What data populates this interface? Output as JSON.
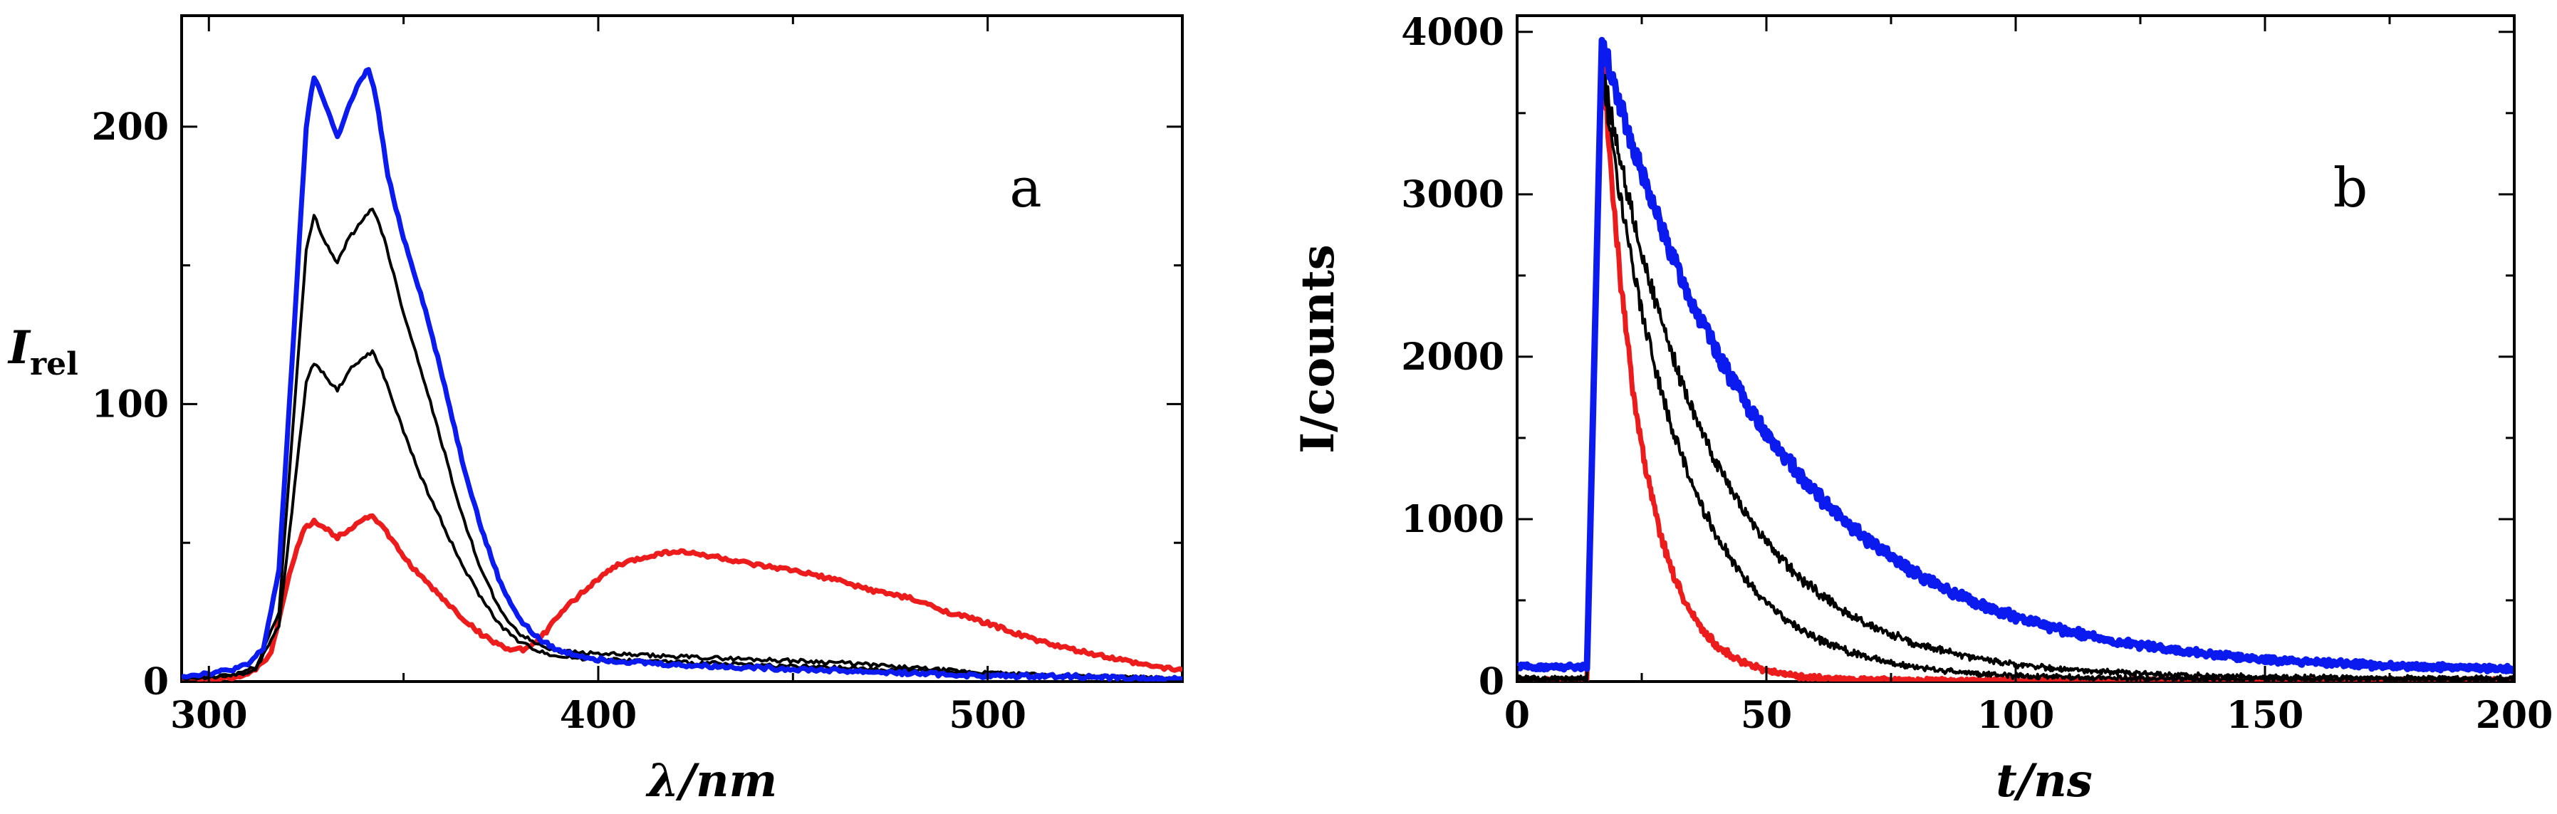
{
  "chart_data": [
    {
      "panel": "a",
      "type": "line",
      "xlabel": "λ/nm",
      "ylabel": "I",
      "ylabel_subscript": "rel",
      "xlim": [
        293,
        550
      ],
      "ylim": [
        0,
        240
      ],
      "xticks": [
        300,
        400,
        500
      ],
      "yticks": [
        0,
        100,
        200
      ],
      "grid": false,
      "series": [
        {
          "name": "blue (highest emission)",
          "color": "#0b1bf0",
          "x": [
            293,
            300,
            305,
            310,
            314,
            318,
            322,
            325,
            327,
            330,
            333,
            335,
            338,
            341,
            343,
            346,
            350,
            355,
            360,
            365,
            370,
            375,
            380,
            385,
            390,
            400,
            420,
            440,
            460,
            480,
            500,
            520,
            540,
            550
          ],
          "y": [
            2,
            3,
            4,
            6,
            12,
            40,
            130,
            200,
            218,
            208,
            196,
            204,
            214,
            221,
            210,
            182,
            160,
            137,
            110,
            80,
            55,
            35,
            22,
            15,
            11,
            8,
            6,
            5,
            4,
            3,
            2,
            2,
            1,
            1
          ]
        },
        {
          "name": "black (intermediate, upper)",
          "color": "#000000",
          "x": [
            293,
            305,
            312,
            318,
            322,
            325,
            327,
            330,
            333,
            336,
            339,
            342,
            345,
            350,
            355,
            360,
            365,
            370,
            375,
            380,
            385,
            390,
            400,
            420,
            440,
            460,
            480,
            500,
            520,
            550
          ],
          "y": [
            1,
            2,
            5,
            25,
            100,
            155,
            168,
            158,
            151,
            160,
            165,
            171,
            160,
            133,
            110,
            85,
            60,
            40,
            25,
            17,
            13,
            11,
            10,
            9,
            8,
            7,
            5,
            3,
            2,
            1
          ]
        },
        {
          "name": "black (intermediate, lower)",
          "color": "#000000",
          "x": [
            293,
            305,
            312,
            318,
            322,
            325,
            327,
            330,
            333,
            336,
            339,
            342,
            345,
            350,
            355,
            360,
            365,
            370,
            375,
            380,
            385,
            390,
            400,
            420,
            440,
            460,
            480,
            500,
            520,
            550
          ],
          "y": [
            1,
            2,
            4,
            20,
            70,
            108,
            115,
            110,
            105,
            112,
            116,
            119,
            110,
            90,
            72,
            57,
            42,
            30,
            20,
            14,
            11,
            9,
            8,
            7,
            6,
            5,
            4,
            3,
            2,
            1
          ]
        },
        {
          "name": "red (lowest emission, with excimer band)",
          "color": "#ed1c1c",
          "x": [
            293,
            300,
            310,
            316,
            320,
            324,
            327,
            330,
            333,
            336,
            339,
            342,
            345,
            350,
            355,
            360,
            365,
            370,
            375,
            378,
            382,
            386,
            390,
            395,
            400,
            405,
            410,
            415,
            420,
            425,
            430,
            440,
            450,
            460,
            470,
            480,
            490,
            500,
            510,
            520,
            530,
            540,
            550
          ],
          "y": [
            1,
            1,
            2,
            10,
            35,
            54,
            58,
            55,
            52,
            55,
            58,
            60,
            55,
            45,
            37,
            30,
            23,
            17,
            13,
            11,
            12,
            17,
            24,
            31,
            37,
            42,
            44,
            46,
            47,
            46,
            45,
            42,
            40,
            37,
            33,
            30,
            25,
            21,
            16,
            12,
            9,
            6,
            4
          ]
        }
      ]
    },
    {
      "panel": "b",
      "type": "line",
      "xlabel": "t/ns",
      "ylabel": "I/counts",
      "xlim": [
        0,
        200
      ],
      "ylim": [
        0,
        4100
      ],
      "xticks": [
        0,
        50,
        100,
        150,
        200
      ],
      "yticks": [
        0,
        1000,
        2000,
        3000,
        4000
      ],
      "grid": false,
      "decay": {
        "baseline_before_pulse": 90,
        "pulse_rise_start_ns": 14,
        "peak_time_ns": 17,
        "peak_counts": 3950
      },
      "series": [
        {
          "name": "blue (longest lifetime)",
          "color": "#0b1bf0",
          "baseline": 60,
          "peak": 3950,
          "lifetime_ns": 34
        },
        {
          "name": "black (upper)",
          "color": "#000000",
          "baseline": 20,
          "peak": 3800,
          "lifetime_ns": 22
        },
        {
          "name": "black (lower)",
          "color": "#000000",
          "baseline": 15,
          "peak": 3750,
          "lifetime_ns": 16
        },
        {
          "name": "red (shortest lifetime)",
          "color": "#ed1c1c",
          "baseline": 5,
          "peak": 3950,
          "lifetime_ns": 8
        }
      ]
    }
  ]
}
